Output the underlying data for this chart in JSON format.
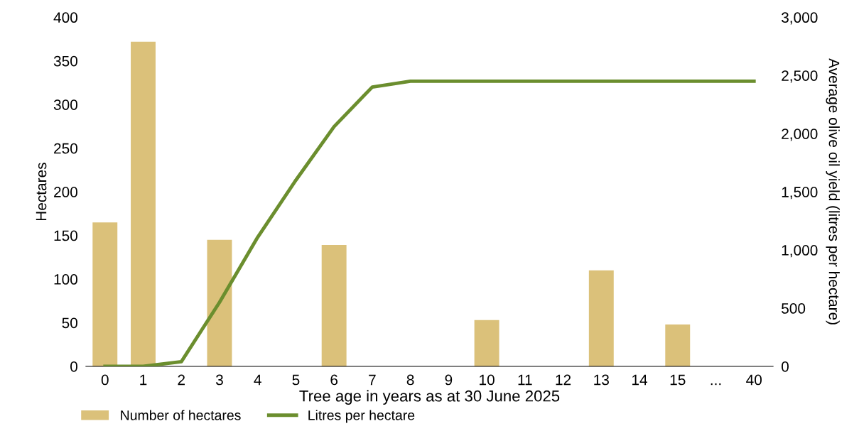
{
  "chart_data": {
    "type": "bar",
    "xlabel": "Tree age in years as at 30 June 2025",
    "ylabel": "Hectares",
    "y2label": "Average olive oil yield (litres per hectare)",
    "categories": [
      "0",
      "1",
      "2",
      "3",
      "4",
      "5",
      "6",
      "7",
      "8",
      "9",
      "10",
      "11",
      "12",
      "13",
      "14",
      "15",
      "...",
      "40"
    ],
    "series": [
      {
        "name": "Number of hectares",
        "color": "#dbc17a",
        "values": [
          165,
          372,
          0,
          145,
          0,
          0,
          139,
          0,
          0,
          0,
          53,
          0,
          0,
          110,
          0,
          48,
          0,
          0
        ]
      },
      {
        "name": "Litres per hectare",
        "type": "line",
        "axis": "y2",
        "color": "#6b8e2e",
        "values": [
          0,
          0,
          40,
          550,
          1110,
          1600,
          2060,
          2400,
          2450,
          2450,
          2450,
          2450,
          2450,
          2450,
          2450,
          2450,
          2450,
          2450
        ]
      }
    ],
    "ylim": [
      0,
      400
    ],
    "yticks": [
      0,
      50,
      100,
      150,
      200,
      250,
      300,
      350,
      400
    ],
    "y2lim": [
      0,
      3000
    ],
    "y2ticks": [
      {
        "value": 0,
        "label": "0"
      },
      {
        "value": 500,
        "label": "500"
      },
      {
        "value": 1000,
        "label": "1,000"
      },
      {
        "value": 1500,
        "label": "1,500"
      },
      {
        "value": 2000,
        "label": "2,000"
      },
      {
        "value": 2500,
        "label": "2,500"
      },
      {
        "value": 3000,
        "label": "3,000"
      }
    ],
    "grid": false,
    "legend": "bottom",
    "marker": "none",
    "line_style": "solid"
  }
}
